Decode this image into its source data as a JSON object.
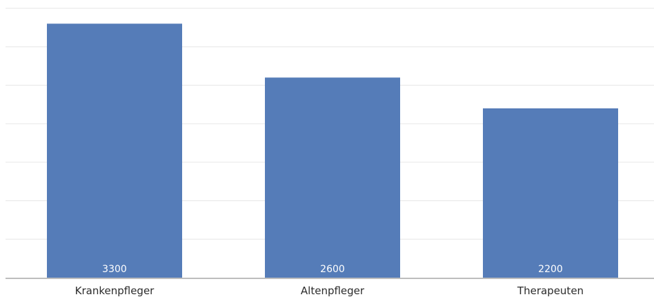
{
  "chart_data": {
    "type": "bar",
    "categories": [
      "Krankenpfleger",
      "Altenpfleger",
      "Therapeuten"
    ],
    "values": [
      3300,
      2600,
      2200
    ],
    "data_labels": [
      "3300",
      "2600",
      "2200"
    ],
    "title": "",
    "xlabel": "",
    "ylabel": "",
    "ylim": [
      0,
      3500
    ],
    "grid": true,
    "legend": "none",
    "colors": {
      "bar": "#557cb8",
      "data_label": "#ffffff",
      "grid": "#e6e6e6",
      "axis": "#bdbdbd",
      "tick_label": "#2b2b2b"
    }
  }
}
